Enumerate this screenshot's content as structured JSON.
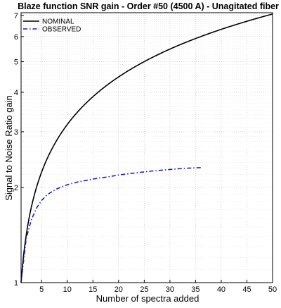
{
  "chart_data": {
    "type": "line",
    "title": "Blaze function SNR gain - Order #50 (4500 A) - Unagitated fiber",
    "xlabel": "Number of spectra added",
    "ylabel": "Signal to Noise Ratio gain",
    "xlim": [
      1,
      50
    ],
    "ylim": [
      1,
      7.14
    ],
    "yscale": "log",
    "grid": true,
    "legend_position": "top-left",
    "x_ticks": [
      5,
      10,
      15,
      20,
      25,
      30,
      35,
      40,
      45,
      50
    ],
    "y_ticks": [
      1,
      2,
      3,
      4,
      5,
      6,
      7
    ],
    "series": [
      {
        "name": "NOMINAL",
        "color": "#000000",
        "dash": "solid",
        "x": [
          1,
          2,
          3,
          4,
          5,
          6,
          8,
          10,
          12,
          15,
          18,
          20,
          25,
          30,
          35,
          40,
          45,
          50
        ],
        "y": [
          1.0,
          1.414,
          1.732,
          2.0,
          2.236,
          2.449,
          2.828,
          3.162,
          3.464,
          3.873,
          4.243,
          4.472,
          5.0,
          5.477,
          5.916,
          6.325,
          6.708,
          7.071
        ]
      },
      {
        "name": "OBSERVED",
        "color": "#1a1acc",
        "dash": "dashdot",
        "x": [
          1,
          2,
          3,
          4,
          5,
          6,
          7,
          8,
          9,
          10,
          12,
          14,
          16,
          18,
          20,
          23,
          26,
          30,
          33,
          36
        ],
        "y": [
          1.0,
          1.38,
          1.58,
          1.72,
          1.82,
          1.89,
          1.94,
          1.98,
          2.01,
          2.04,
          2.08,
          2.11,
          2.14,
          2.16,
          2.19,
          2.22,
          2.25,
          2.28,
          2.3,
          2.31
        ]
      }
    ]
  }
}
